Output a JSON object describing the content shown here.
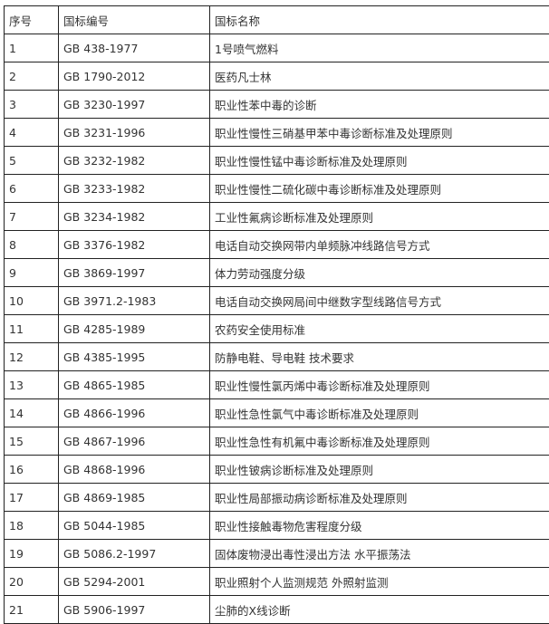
{
  "headers": [
    "序号",
    "国标编号",
    "国标名称"
  ],
  "rows": [
    [
      "1",
      "GB 438-1977",
      "1号喷气燃料"
    ],
    [
      "2",
      "GB 1790-2012",
      "医药凡士林"
    ],
    [
      "3",
      "GB 3230-1997",
      "职业性苯中毒的诊断"
    ],
    [
      "4",
      "GB 3231-1996",
      "职业性慢性三硝基甲苯中毒诊断标准及处理原则"
    ],
    [
      "5",
      "GB 3232-1982",
      "职业性慢性锰中毒诊断标准及处理原则"
    ],
    [
      "6",
      "GB 3233-1982",
      "职业性慢性二硫化碳中毒诊断标准及处理原则"
    ],
    [
      "7",
      "GB 3234-1982",
      "工业性氟病诊断标准及处理原则"
    ],
    [
      "8",
      "GB 3376-1982",
      "电话自动交换网带内单频脉冲线路信号方式"
    ],
    [
      "9",
      "GB 3869-1997",
      "体力劳动强度分级"
    ],
    [
      "10",
      "GB 3971.2-1983",
      "电话自动交换网局间中继数字型线路信号方式"
    ],
    [
      "11",
      "GB 4285-1989",
      "农药安全使用标准"
    ],
    [
      "12",
      "GB 4385-1995",
      "防静电鞋、导电鞋  技术要求"
    ],
    [
      "13",
      "GB 4865-1985",
      "职业性慢性氯丙烯中毒诊断标准及处理原则"
    ],
    [
      "14",
      "GB 4866-1996",
      "职业性急性氯气中毒诊断标准及处理原则"
    ],
    [
      "15",
      "GB 4867-1996",
      "职业性急性有机氟中毒诊断标准及处理原则"
    ],
    [
      "16",
      "GB 4868-1996",
      "职业性铍病诊断标准及处理原则"
    ],
    [
      "17",
      "GB 4869-1985",
      "职业性局部振动病诊断标准及处理原则"
    ],
    [
      "18",
      "GB 5044-1985",
      "职业性接触毒物危害程度分级"
    ],
    [
      "19",
      "GB 5086.2-1997",
      "固体废物浸出毒性浸出方法  水平振荡法"
    ],
    [
      "20",
      "GB 5294-2001",
      "职业照射个人监测规范  外照射监测"
    ],
    [
      "21",
      "GB 5906-1997",
      "尘肺的X线诊断"
    ]
  ]
}
